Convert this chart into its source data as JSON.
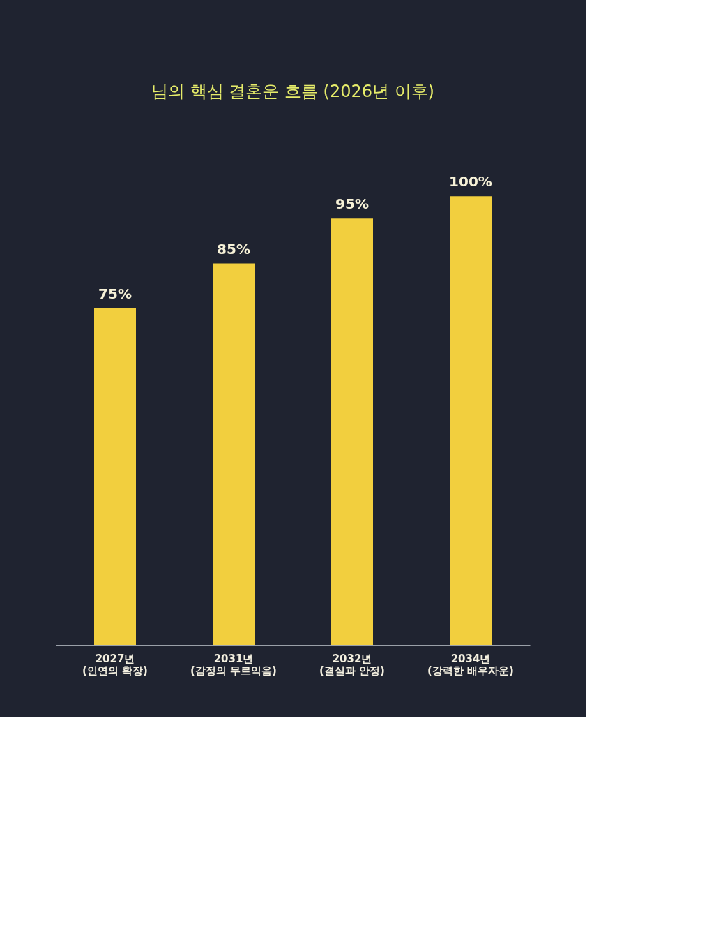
{
  "chart_data": {
    "type": "bar",
    "title": "님의 핵심 결혼운 흐름 (2026년 이후)",
    "categories": [
      "2027년 (인연의 확장)",
      "2031년 (감정의 무르익음)",
      "2032년 (결실과 안정)",
      "2034년 (강력한 배우자운)"
    ],
    "values": [
      75,
      85,
      95,
      100
    ],
    "value_labels": [
      "75%",
      "85%",
      "95%",
      "100%"
    ],
    "color": "#f2cf3e",
    "tick_labels": "x"
  }
}
